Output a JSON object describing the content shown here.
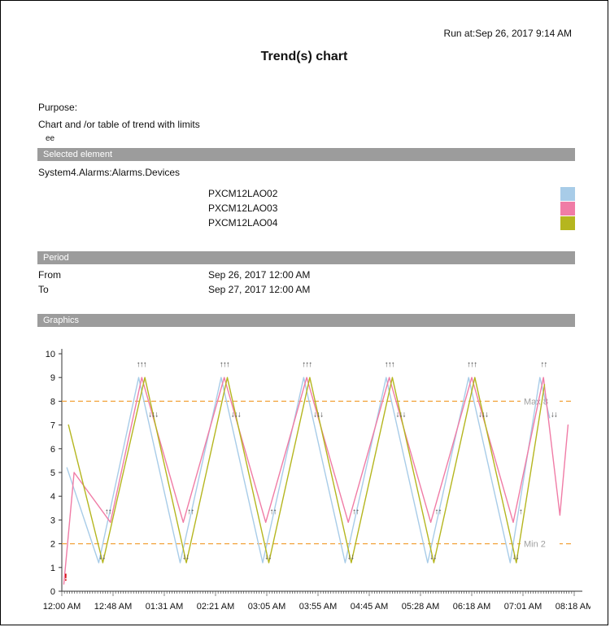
{
  "header": {
    "run_at": "Run at:Sep 26, 2017 9:14 AM",
    "title": "Trend(s) chart"
  },
  "purpose": {
    "label": "Purpose:",
    "description": "Chart and /or table of trend with limits",
    "note": "ee"
  },
  "sections": {
    "selected_element": "Selected element",
    "period": "Period",
    "graphics": "Graphics"
  },
  "selected_element": {
    "path": "System4.Alarms:Alarms.Devices",
    "legend": [
      {
        "label": "PXCM12LAO02",
        "color": "#a8cce8"
      },
      {
        "label": "PXCM12LAO03",
        "color": "#f07ca6"
      },
      {
        "label": "PXCM12LAO04",
        "color": "#b5b61f"
      }
    ]
  },
  "period": {
    "from_label": "From",
    "from_value": "Sep 26, 2017 12:00 AM",
    "to_label": "To",
    "to_value": "Sep 27, 2017 12:00 AM"
  },
  "chart_data": {
    "type": "line",
    "title": "Trend(s) chart",
    "xlabel": "",
    "ylabel": "",
    "ylim": [
      0,
      10
    ],
    "y_ticks": [
      0,
      1,
      2,
      3,
      4,
      5,
      6,
      7,
      8,
      9,
      10
    ],
    "x_tick_labels": [
      "12:00 AM",
      "12:48 AM",
      "01:31 AM",
      "02:21 AM",
      "03:05 AM",
      "03:55 AM",
      "04:45 AM",
      "05:28 AM",
      "06:18 AM",
      "07:01 AM",
      "08:18 AM"
    ],
    "grid": false,
    "legend_position": "top-right-outside",
    "limits": {
      "max": {
        "value": 8,
        "label": "Max 8",
        "color": "#f2a33c"
      },
      "min": {
        "value": 2,
        "label": "Min 2",
        "color": "#f2a33c"
      }
    },
    "series": [
      {
        "name": "PXCM12LAO02",
        "color": "#a8cce8",
        "points": [
          [
            0.1,
            5.2
          ],
          [
            0.72,
            1.2
          ],
          [
            1.5,
            9
          ],
          [
            2.31,
            1.2
          ],
          [
            3.11,
            9
          ],
          [
            3.92,
            1.2
          ],
          [
            4.72,
            9
          ],
          [
            5.53,
            1.2
          ],
          [
            6.33,
            9
          ],
          [
            7.14,
            1.2
          ],
          [
            7.94,
            9
          ],
          [
            8.75,
            1.2
          ],
          [
            9.33,
            9
          ],
          [
            9.52,
            7.3
          ]
        ]
      },
      {
        "name": "PXCM12LAO03",
        "color": "#f07ca6",
        "points": [
          [
            0.04,
            0.3
          ],
          [
            0.24,
            5.0
          ],
          [
            0.95,
            2.9
          ],
          [
            1.56,
            9
          ],
          [
            2.37,
            2.9
          ],
          [
            3.17,
            9
          ],
          [
            3.98,
            2.9
          ],
          [
            4.78,
            9
          ],
          [
            5.59,
            2.9
          ],
          [
            6.39,
            9
          ],
          [
            7.2,
            2.9
          ],
          [
            8.0,
            9
          ],
          [
            8.81,
            2.9
          ],
          [
            9.4,
            9
          ],
          [
            9.72,
            3.2
          ],
          [
            9.88,
            7.0
          ]
        ]
      },
      {
        "name": "PXCM12LAO04",
        "color": "#b5b61f",
        "points": [
          [
            0.13,
            7.0
          ],
          [
            0.8,
            1.2
          ],
          [
            1.62,
            9
          ],
          [
            2.43,
            1.2
          ],
          [
            3.23,
            9
          ],
          [
            4.04,
            1.2
          ],
          [
            4.84,
            9
          ],
          [
            5.65,
            1.2
          ],
          [
            6.45,
            9
          ],
          [
            7.26,
            1.2
          ],
          [
            8.06,
            9
          ],
          [
            8.87,
            1.2
          ],
          [
            9.42,
            8.7
          ]
        ]
      }
    ],
    "annotations": [
      {
        "x": 1.55,
        "y": 9.55,
        "text": "↑↑↑"
      },
      {
        "x": 3.17,
        "y": 9.55,
        "text": "↑↑↑"
      },
      {
        "x": 4.78,
        "y": 9.55,
        "text": "↑↑↑"
      },
      {
        "x": 6.39,
        "y": 9.55,
        "text": "↑↑↑"
      },
      {
        "x": 8.0,
        "y": 9.55,
        "text": "↑↑↑"
      },
      {
        "x": 9.4,
        "y": 9.55,
        "text": "↑↑"
      },
      {
        "x": 1.78,
        "y": 7.45,
        "text": "↓↓↓"
      },
      {
        "x": 3.39,
        "y": 7.45,
        "text": "↓↓↓"
      },
      {
        "x": 5.0,
        "y": 7.45,
        "text": "↓↓↓"
      },
      {
        "x": 6.61,
        "y": 7.45,
        "text": "↓↓↓"
      },
      {
        "x": 8.22,
        "y": 7.45,
        "text": "↓↓↓"
      },
      {
        "x": 9.6,
        "y": 7.45,
        "text": "↓↓"
      },
      {
        "x": 0.9,
        "y": 3.35,
        "text": "↑↑"
      },
      {
        "x": 2.51,
        "y": 3.35,
        "text": "↑↑"
      },
      {
        "x": 4.12,
        "y": 3.35,
        "text": "↑↑"
      },
      {
        "x": 5.73,
        "y": 3.35,
        "text": "↑↑"
      },
      {
        "x": 7.34,
        "y": 3.35,
        "text": "↑↑"
      },
      {
        "x": 8.95,
        "y": 3.35,
        "text": "↑"
      },
      {
        "x": 0.78,
        "y": 1.45,
        "text": "↓↓"
      },
      {
        "x": 2.41,
        "y": 1.45,
        "text": "↓↓"
      },
      {
        "x": 4.02,
        "y": 1.45,
        "text": "↓↓"
      },
      {
        "x": 5.63,
        "y": 1.45,
        "text": "↓↓"
      },
      {
        "x": 7.24,
        "y": 1.45,
        "text": "↓↓"
      },
      {
        "x": 8.85,
        "y": 1.45,
        "text": "↓↓"
      },
      {
        "x": 0.07,
        "y": 0.55,
        "text": "!",
        "color": "#d40000"
      }
    ]
  }
}
